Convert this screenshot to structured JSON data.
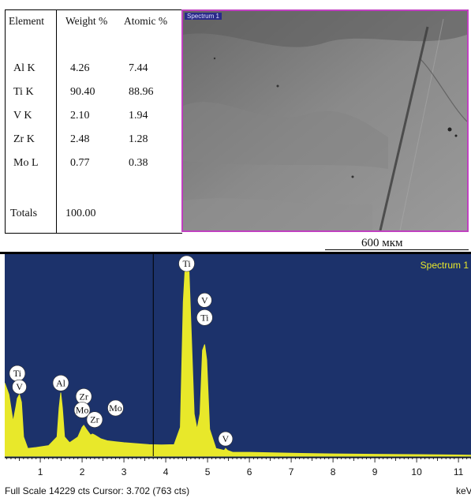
{
  "table": {
    "headers": [
      "Element",
      "Weight %",
      "Atomic %"
    ],
    "rows": [
      {
        "element": "Al K",
        "weight": "4.26",
        "atomic": "7.44"
      },
      {
        "element": "Ti K",
        "weight": "90.40",
        "atomic": "88.96"
      },
      {
        "element": "V K",
        "weight": "2.10",
        "atomic": "1.94"
      },
      {
        "element": "Zr K",
        "weight": "2.48",
        "atomic": "1.28"
      },
      {
        "element": "Mo L",
        "weight": "0.77",
        "atomic": "0.38"
      }
    ],
    "totals_label": "Totals",
    "totals_value": "100.00"
  },
  "image_panel": {
    "spectrum_tag": "Spectrum 1",
    "scale_bar_label": "600 мкм"
  },
  "chart_data": {
    "type": "line",
    "title": "Spectrum 1",
    "xlabel": "keV",
    "xlim": [
      0.15,
      11.3
    ],
    "xticks": [
      1,
      2,
      3,
      4,
      5,
      6,
      7,
      8,
      9,
      10,
      11
    ],
    "series": [
      {
        "name": "Spectrum 1",
        "x": [
          0.15,
          0.25,
          0.35,
          0.42,
          0.45,
          0.5,
          0.55,
          0.6,
          0.7,
          0.9,
          1.2,
          1.4,
          1.45,
          1.49,
          1.53,
          1.58,
          1.7,
          1.9,
          2.0,
          2.04,
          2.1,
          2.2,
          2.25,
          2.3,
          2.45,
          2.6,
          2.8,
          3.0,
          3.3,
          3.6,
          3.9,
          4.2,
          4.35,
          4.42,
          4.47,
          4.51,
          4.55,
          4.6,
          4.68,
          4.75,
          4.82,
          4.88,
          4.93,
          4.98,
          5.05,
          5.2,
          5.4,
          5.43,
          5.48,
          5.6,
          6.0,
          7.0,
          8.0,
          9.0,
          10.0,
          11.0,
          11.3
        ],
        "y": [
          38,
          32,
          18,
          26,
          30,
          32,
          28,
          10,
          4,
          4.5,
          5.5,
          10,
          25,
          33,
          25,
          10,
          7,
          10,
          15,
          16,
          14,
          11,
          11.5,
          11,
          9,
          8,
          7.5,
          7,
          6.5,
          6,
          5.8,
          6,
          15,
          80,
          100,
          100,
          100,
          70,
          22,
          14,
          22,
          55,
          58,
          50,
          14,
          4,
          3,
          4,
          3,
          2,
          2,
          1.5,
          1.2,
          1.0,
          0.8,
          0.6,
          0.5
        ]
      }
    ],
    "peak_labels": [
      {
        "label": "Ti",
        "x": 0.45,
        "y": 43
      },
      {
        "label": "V",
        "x": 0.5,
        "y": 36
      },
      {
        "label": "Al",
        "x": 1.49,
        "y": 38
      },
      {
        "label": "Zr",
        "x": 2.04,
        "y": 31
      },
      {
        "label": "Mo",
        "x": 2.0,
        "y": 24
      },
      {
        "label": "Zr",
        "x": 2.3,
        "y": 19
      },
      {
        "label": "Mo",
        "x": 2.8,
        "y": 25
      },
      {
        "label": "Ti",
        "x": 4.5,
        "y": 100
      },
      {
        "label": "V",
        "x": 4.93,
        "y": 81
      },
      {
        "label": "Ti",
        "x": 4.93,
        "y": 72
      },
      {
        "label": "V",
        "x": 5.43,
        "y": 9
      }
    ],
    "cursor_x": 3.702,
    "footer": "Full Scale 14229 cts Cursor: 3.702  (763 cts)",
    "unit_label": "keV",
    "colors": {
      "background": "#1c326b",
      "fill": "#e8e82a",
      "legend_text": "#e8e82a"
    }
  }
}
